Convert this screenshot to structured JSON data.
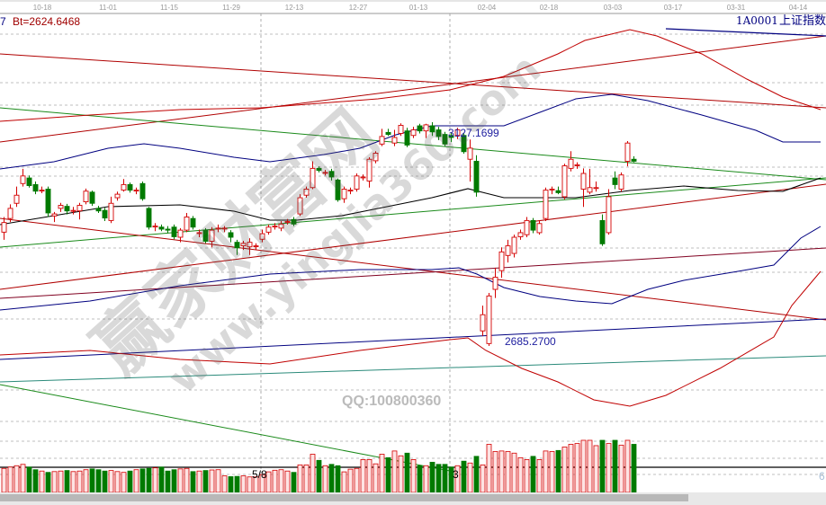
{
  "chart_data": {
    "type": "candlestick",
    "symbol_code": "1A0001",
    "symbol_name": "上证指数",
    "header_left_index": "7",
    "header_left_value": "Bt=2624.6468",
    "x_tick_labels": [
      "10-18",
      "11-01",
      "11-15",
      "11-29",
      "12-13",
      "12-27",
      "01-13",
      "02-04",
      "02-18",
      "03-03",
      "03-17",
      "03-31",
      "04-14"
    ],
    "high_label": "3127.1699",
    "low_label": "2685.2700",
    "price_high": 3127.17,
    "price_low": 2685.27,
    "volume_labels": [
      "5/8",
      "3"
    ],
    "volume_axis_label": "6",
    "grid": true,
    "colors": {
      "up": "#d40000",
      "up_fill": "#fde3e3",
      "down": "#007a00",
      "ma": "#000000",
      "band_outer": "#c00000",
      "band_inner": "#000080",
      "trend_green": "#1a8a1a",
      "trend_red": "#b00000",
      "trend_teal": "#2a8a7a"
    },
    "candles_ohlc": [
      [
        2910,
        2940,
        2895,
        2929
      ],
      [
        2937,
        2965,
        2930,
        2957
      ],
      [
        2967,
        3000,
        2960,
        2983
      ],
      [
        3006,
        3035,
        3000,
        3021
      ],
      [
        3017,
        3022,
        2998,
        3002
      ],
      [
        3004,
        3010,
        2985,
        2991
      ],
      [
        2993,
        3000,
        2987,
        2993
      ],
      [
        2995,
        3000,
        2940,
        2948
      ],
      [
        2942,
        2950,
        2930,
        2946
      ],
      [
        2957,
        2968,
        2950,
        2963
      ],
      [
        2961,
        2966,
        2945,
        2952
      ],
      [
        2953,
        2960,
        2945,
        2953
      ],
      [
        2952,
        2968,
        2935,
        2963
      ],
      [
        2970,
        2996,
        2965,
        2991
      ],
      [
        2989,
        2992,
        2962,
        2967
      ],
      [
        2957,
        2962,
        2948,
        2952
      ],
      [
        2953,
        2958,
        2932,
        2938
      ],
      [
        2933,
        2980,
        2928,
        2967
      ],
      [
        2978,
        2990,
        2972,
        2985
      ],
      [
        2993,
        3015,
        2990,
        3004
      ],
      [
        3004,
        3008,
        2988,
        2993
      ],
      [
        2993,
        2998,
        2985,
        2993
      ],
      [
        3006,
        3010,
        2972,
        2976
      ],
      [
        2957,
        2960,
        2915,
        2920
      ],
      [
        2922,
        2928,
        2912,
        2922
      ],
      [
        2920,
        2925,
        2912,
        2916
      ],
      [
        2916,
        2922,
        2908,
        2914
      ],
      [
        2920,
        2925,
        2896,
        2901
      ],
      [
        2900,
        2918,
        2890,
        2914
      ],
      [
        2914,
        2948,
        2910,
        2940
      ],
      [
        2937,
        2942,
        2915,
        2920
      ],
      [
        2909,
        2915,
        2900,
        2909
      ],
      [
        2914,
        2918,
        2888,
        2892
      ],
      [
        2892,
        2920,
        2880,
        2914
      ],
      [
        2918,
        2925,
        2910,
        2918
      ],
      [
        2918,
        2922,
        2910,
        2918
      ],
      [
        2909,
        2914,
        2890,
        2900
      ],
      [
        2890,
        2895,
        2865,
        2879
      ],
      [
        2883,
        2893,
        2875,
        2888
      ],
      [
        2881,
        2898,
        2865,
        2890
      ],
      [
        2883,
        2888,
        2876,
        2883
      ],
      [
        2896,
        2915,
        2890,
        2907
      ],
      [
        2910,
        2925,
        2905,
        2920
      ],
      [
        2922,
        2928,
        2915,
        2922
      ],
      [
        2918,
        2932,
        2912,
        2926
      ],
      [
        2931,
        2936,
        2925,
        2931
      ],
      [
        2935,
        2940,
        2922,
        2926
      ],
      [
        2946,
        2985,
        2942,
        2978
      ],
      [
        2983,
        3000,
        2978,
        2995
      ],
      [
        2998,
        3050,
        2995,
        3036
      ],
      [
        3036,
        3040,
        3028,
        3032
      ],
      [
        3028,
        3033,
        3022,
        3028
      ],
      [
        3030,
        3035,
        3012,
        3019
      ],
      [
        3013,
        3016,
        2970,
        2974
      ],
      [
        2976,
        3000,
        2968,
        2995
      ],
      [
        2993,
        2998,
        2985,
        2993
      ],
      [
        2995,
        3026,
        2990,
        3021
      ],
      [
        3019,
        3024,
        3012,
        3019
      ],
      [
        3011,
        3058,
        2998,
        3054
      ],
      [
        3051,
        3070,
        3046,
        3066
      ],
      [
        3084,
        3114,
        3080,
        3099
      ],
      [
        3107,
        3114,
        3100,
        3103
      ],
      [
        3086,
        3112,
        3080,
        3097
      ],
      [
        3105,
        3125,
        3100,
        3121
      ],
      [
        3110,
        3116,
        3078,
        3082
      ],
      [
        3101,
        3118,
        3096,
        3112
      ],
      [
        3120,
        3124,
        3105,
        3110
      ],
      [
        3110,
        3124,
        3096,
        3122
      ],
      [
        3120,
        3127.17,
        3100,
        3108
      ],
      [
        3112,
        3118,
        3092,
        3099
      ],
      [
        3103,
        3108,
        3080,
        3084
      ],
      [
        3101,
        3106,
        3088,
        3097
      ],
      [
        3101,
        3116,
        3094,
        3112
      ],
      [
        3101,
        3105,
        3065,
        3069
      ],
      [
        3054,
        3093,
        3010,
        3076
      ],
      [
        3050,
        3062,
        2980,
        2989
      ],
      [
        2715,
        2765,
        2705,
        2747
      ],
      [
        2690,
        2790,
        2685.27,
        2784
      ],
      [
        2797,
        2840,
        2780,
        2821
      ],
      [
        2834,
        2880,
        2820,
        2871
      ],
      [
        2864,
        2895,
        2850,
        2883
      ],
      [
        2868,
        2905,
        2860,
        2900
      ],
      [
        2901,
        2915,
        2895,
        2909
      ],
      [
        2905,
        2940,
        2900,
        2933
      ],
      [
        2933,
        2938,
        2908,
        2914
      ],
      [
        2909,
        2932,
        2905,
        2927
      ],
      [
        2937,
        2998,
        2932,
        2993
      ],
      [
        2995,
        3000,
        2985,
        2995
      ],
      [
        2992,
        3000,
        2985,
        2988
      ],
      [
        2980,
        3045,
        2975,
        3041
      ],
      [
        3036,
        3070,
        3030,
        3054
      ],
      [
        3043,
        3048,
        3035,
        3043
      ],
      [
        2995,
        3036,
        2960,
        3026
      ],
      [
        2989,
        3035,
        2985,
        2998
      ],
      [
        2998,
        3010,
        2990,
        2998
      ],
      [
        2933,
        2945,
        2883,
        2887
      ],
      [
        2909,
        2995,
        2905,
        2980
      ],
      [
        3017,
        3030,
        2995,
        3004
      ],
      [
        2995,
        3028,
        2990,
        3023
      ],
      [
        3050,
        3090,
        3040,
        3086
      ],
      [
        3054,
        3060,
        3048,
        3050
      ]
    ],
    "volumes": [
      90,
      95,
      100,
      105,
      95,
      85,
      80,
      75,
      78,
      80,
      82,
      78,
      80,
      85,
      88,
      85,
      80,
      82,
      78,
      75,
      80,
      85,
      88,
      90,
      92,
      95,
      80,
      85,
      88,
      90,
      78,
      80,
      82,
      84,
      85,
      62,
      59,
      60,
      62,
      58,
      58,
      67,
      77,
      83,
      85,
      80,
      75,
      103,
      103,
      143,
      120,
      100,
      105,
      100,
      77,
      87,
      90,
      123,
      123,
      107,
      143,
      130,
      155,
      137,
      147,
      123,
      100,
      100,
      113,
      105,
      105,
      95,
      100,
      117,
      110,
      135,
      103,
      180,
      153,
      155,
      153,
      147,
      130,
      123,
      135,
      123,
      155,
      153,
      157,
      170,
      180,
      183,
      195,
      195,
      175,
      195,
      183,
      195,
      177,
      195,
      180
    ]
  },
  "watermark": {
    "site_name": "赢家财富网",
    "url": "www.yingjia360.com",
    "qq": "QQ:100800360"
  }
}
